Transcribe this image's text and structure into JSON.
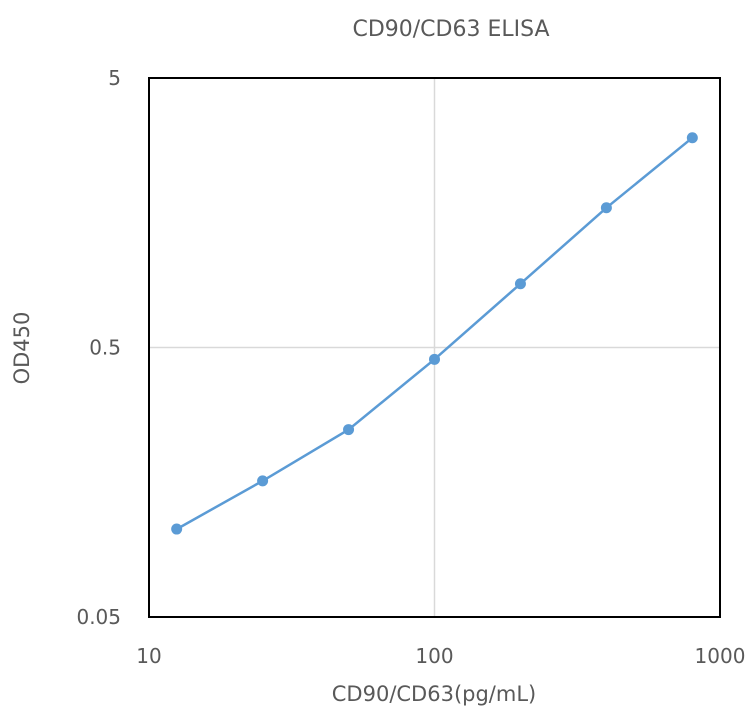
{
  "chart_data": {
    "type": "line",
    "title": "CD90/CD63 ELISA",
    "xlabel": "CD90/CD63(pg/mL)",
    "ylabel": "OD450",
    "x_scale": "log",
    "y_scale": "log",
    "xlim": [
      10,
      1000
    ],
    "ylim": [
      0.05,
      5
    ],
    "x_ticks": [
      "10",
      "100",
      "1000"
    ],
    "y_ticks": [
      "0.05",
      "0.5",
      "5"
    ],
    "grid": true,
    "legend": "none",
    "series": [
      {
        "color": "#5b9bd5",
        "x": [
          12.5,
          25,
          50,
          100,
          200,
          400,
          800
        ],
        "y": [
          0.106,
          0.16,
          0.248,
          0.452,
          0.862,
          1.65,
          3.0
        ]
      }
    ]
  }
}
